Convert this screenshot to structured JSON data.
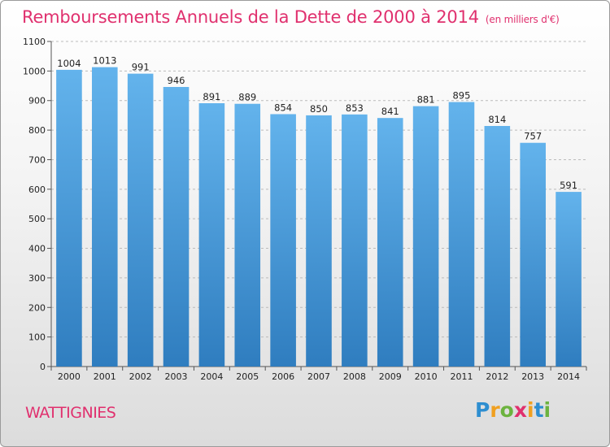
{
  "chart_data": {
    "type": "bar",
    "title": "Remboursements Annuels de la Dette de 2000 à 2014",
    "subtitle": "(en milliers d'€)",
    "categories": [
      "2000",
      "2001",
      "2002",
      "2003",
      "2004",
      "2005",
      "2006",
      "2007",
      "2008",
      "2009",
      "2010",
      "2011",
      "2012",
      "2013",
      "2014"
    ],
    "values": [
      1004,
      1013,
      991,
      946,
      891,
      889,
      854,
      850,
      853,
      841,
      881,
      895,
      814,
      757,
      591
    ],
    "yticks": [
      0,
      100,
      200,
      300,
      400,
      500,
      600,
      700,
      800,
      900,
      1000,
      1100
    ],
    "ylim": [
      0,
      1100
    ],
    "grid": true,
    "bar_color_top": "#63b3ec",
    "bar_color_bottom": "#2f7dbf"
  },
  "footer": {
    "commune": "WATTIGNIES",
    "logo": [
      "P",
      "r",
      "o",
      "x",
      "i",
      "t",
      "i"
    ]
  }
}
